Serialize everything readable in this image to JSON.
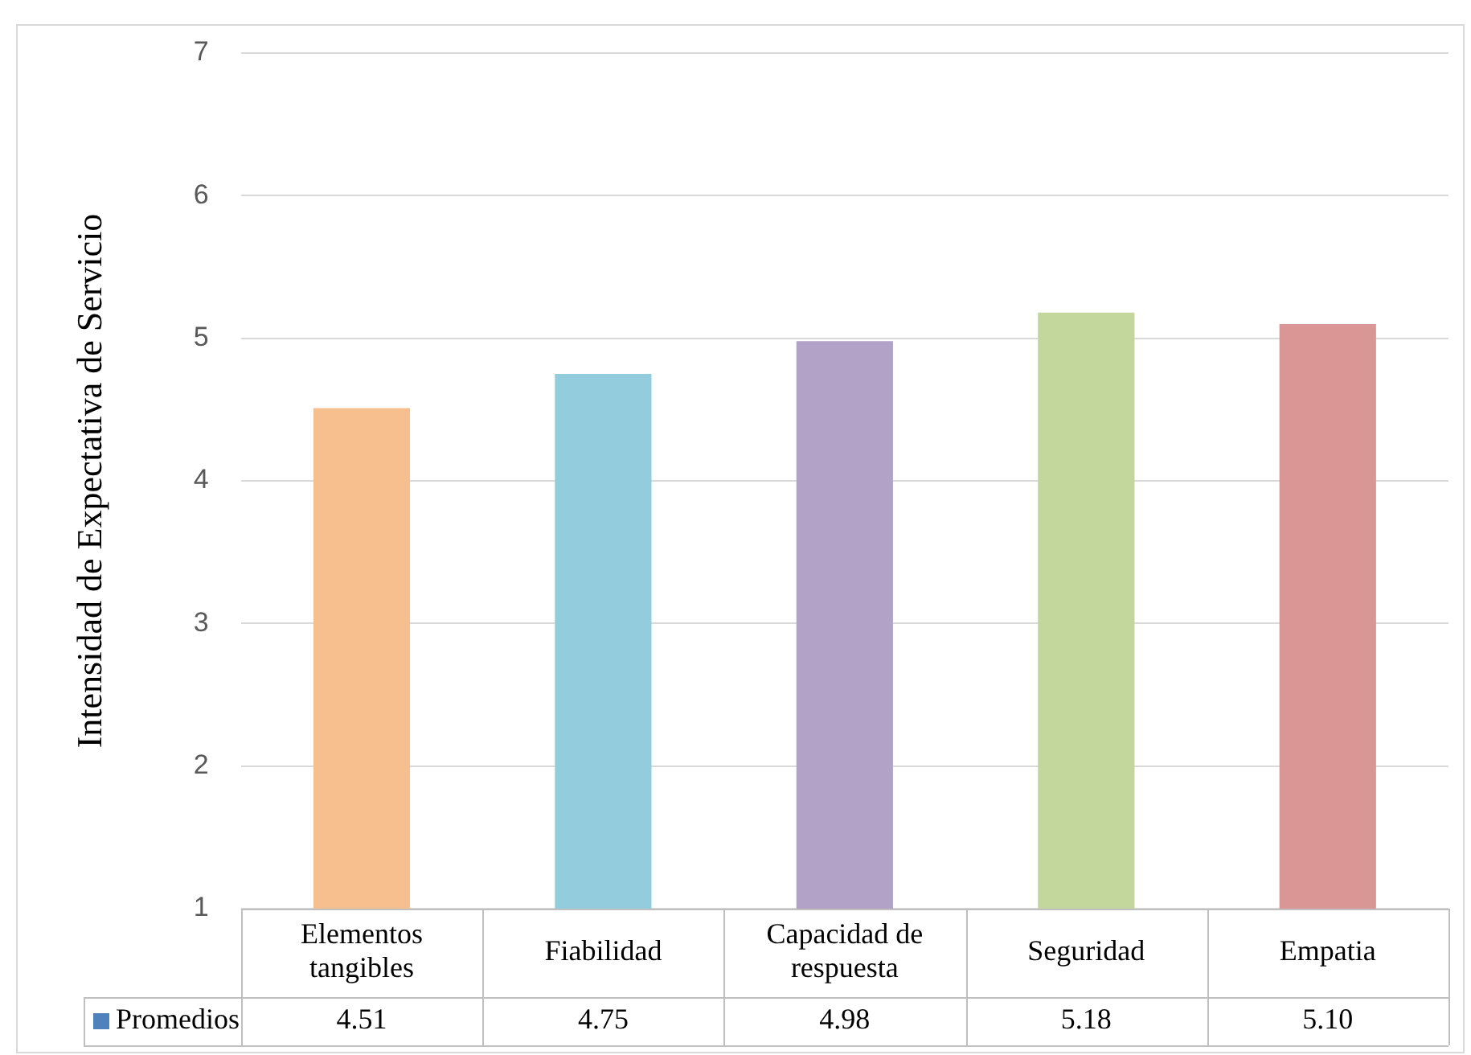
{
  "chart_data": {
    "type": "bar",
    "ylabel": "Intensidad de Expectativa de Servicio",
    "categories": [
      "Elementos tangibles",
      "Fiabilidad",
      "Capacidad de respuesta",
      "Seguridad",
      "Empatia"
    ],
    "series": [
      {
        "name": "Promedios",
        "color": "#4f81bd",
        "colors": [
          "#f8bf8e",
          "#93cddd",
          "#b3a2c7",
          "#c3d69b",
          "#d99694"
        ],
        "values": [
          4.51,
          4.75,
          4.98,
          5.18,
          5.1
        ],
        "value_labels": [
          "4.51",
          "4.75",
          "4.98",
          "5.18",
          "5.10"
        ]
      }
    ],
    "ylim": [
      1,
      7
    ],
    "yticks": [
      1,
      2,
      3,
      4,
      5,
      6,
      7
    ],
    "grid": "y",
    "legend": "bottom"
  }
}
